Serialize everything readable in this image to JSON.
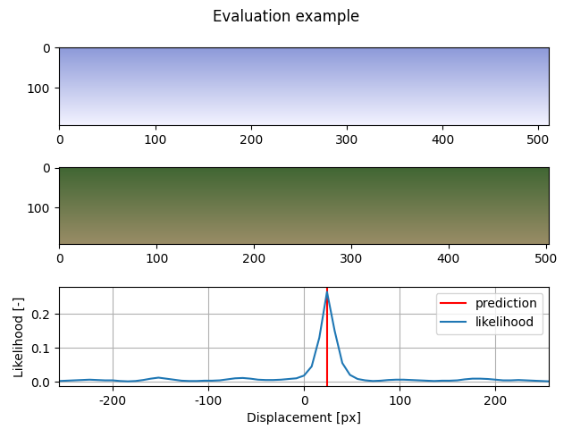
{
  "title": "Evaluation example",
  "chart_data": [
    {
      "type": "image",
      "xlim": [
        -0.5,
        511.5
      ],
      "ylim": [
        191.5,
        -0.5
      ],
      "xticks": [
        0,
        100,
        200,
        300,
        400,
        500
      ],
      "yticks": [
        0,
        100
      ]
    },
    {
      "type": "image",
      "xlim": [
        -0.5,
        503.5
      ],
      "ylim": [
        191.5,
        -0.5
      ],
      "xticks": [
        0,
        100,
        200,
        300,
        400,
        500
      ],
      "yticks": [
        0,
        100
      ]
    },
    {
      "type": "line",
      "x_label": "Displacement [px]",
      "y_label": "Likelihood [-]",
      "xlim": [
        -256,
        256
      ],
      "ylim": [
        -0.013,
        0.28
      ],
      "xticks": [
        -200,
        -100,
        0,
        100,
        200
      ],
      "yticks": [
        0.0,
        0.1,
        0.2
      ],
      "grid": true,
      "legend": "upper right",
      "series": [
        {
          "name": "prediction",
          "type": "vline",
          "color": "red",
          "x": [
            24
          ]
        },
        {
          "name": "likelihood",
          "type": "line",
          "color": "#1f77b4",
          "x": [
            -256,
            -248,
            -240,
            -232,
            -224,
            -216,
            -208,
            -200,
            -192,
            -184,
            -176,
            -168,
            -160,
            -152,
            -144,
            -136,
            -128,
            -120,
            -112,
            -104,
            -96,
            -88,
            -80,
            -72,
            -64,
            -56,
            -48,
            -40,
            -32,
            -24,
            -16,
            -8,
            0,
            8,
            16,
            24,
            32,
            40,
            48,
            56,
            64,
            72,
            80,
            88,
            96,
            104,
            112,
            120,
            128,
            136,
            144,
            152,
            160,
            168,
            176,
            184,
            192,
            200,
            208,
            216,
            224,
            232,
            240,
            248,
            256
          ],
          "values": [
            0.002,
            0.003,
            0.004,
            0.005,
            0.006,
            0.005,
            0.004,
            0.004,
            0.002,
            0.001,
            0.002,
            0.005,
            0.009,
            0.012,
            0.009,
            0.006,
            0.003,
            0.002,
            0.002,
            0.003,
            0.003,
            0.004,
            0.007,
            0.01,
            0.011,
            0.009,
            0.006,
            0.005,
            0.005,
            0.006,
            0.008,
            0.01,
            0.018,
            0.045,
            0.13,
            0.265,
            0.15,
            0.055,
            0.02,
            0.008,
            0.004,
            0.002,
            0.003,
            0.005,
            0.006,
            0.006,
            0.005,
            0.004,
            0.003,
            0.002,
            0.003,
            0.003,
            0.004,
            0.007,
            0.009,
            0.009,
            0.008,
            0.006,
            0.004,
            0.004,
            0.005,
            0.004,
            0.003,
            0.002,
            0.001
          ]
        }
      ]
    }
  ]
}
